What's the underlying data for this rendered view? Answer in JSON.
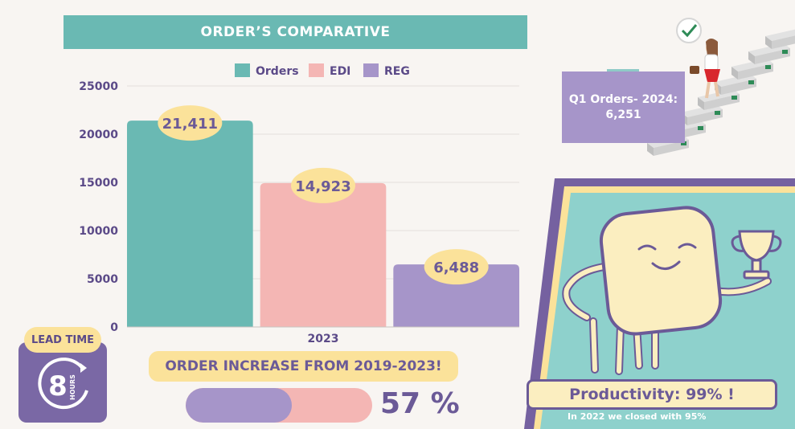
{
  "chart_data": {
    "type": "bar",
    "title": "ORDER’S COMPARATIVE",
    "categories": [
      "2023"
    ],
    "series": [
      {
        "name": "Orders",
        "values": [
          21411
        ],
        "label": "21,411",
        "color": "#6ab9b3"
      },
      {
        "name": "EDI",
        "values": [
          14923
        ],
        "label": "14,923",
        "color": "#f4b6b4"
      },
      {
        "name": "REG",
        "values": [
          6488
        ],
        "label": "6,488",
        "color": "#a695c9"
      }
    ],
    "ylim": [
      0,
      25000
    ],
    "yticks": [
      "0",
      "5000",
      "10000",
      "15000",
      "20000",
      "25000"
    ],
    "grid": true,
    "legend": "top"
  },
  "q1": {
    "line1": "Q1 Orders- 2024:",
    "line2": "6,251"
  },
  "increase": {
    "text": "ORDER INCREASE FROM 2019-2023!",
    "percent_text": "57 %",
    "fraction": 0.57
  },
  "lead_time": {
    "label": "LEAD TIME",
    "value": "8",
    "unit": "HOURS"
  },
  "productivity": {
    "text": "Productivity: 99% !",
    "note": "In 2022 we closed with  95%"
  },
  "colors": {
    "teal": "#6ab9b3",
    "pink": "#f4b6b4",
    "purple": "#a695c9",
    "yellow": "#fbe29a",
    "dark_purple": "#6b5a97"
  },
  "icons": [
    "stairs-illustration",
    "climbing-person-illustration",
    "checkmark-flag-icon",
    "mascot-character-illustration",
    "trophy-icon",
    "clock-arrow-icon"
  ]
}
